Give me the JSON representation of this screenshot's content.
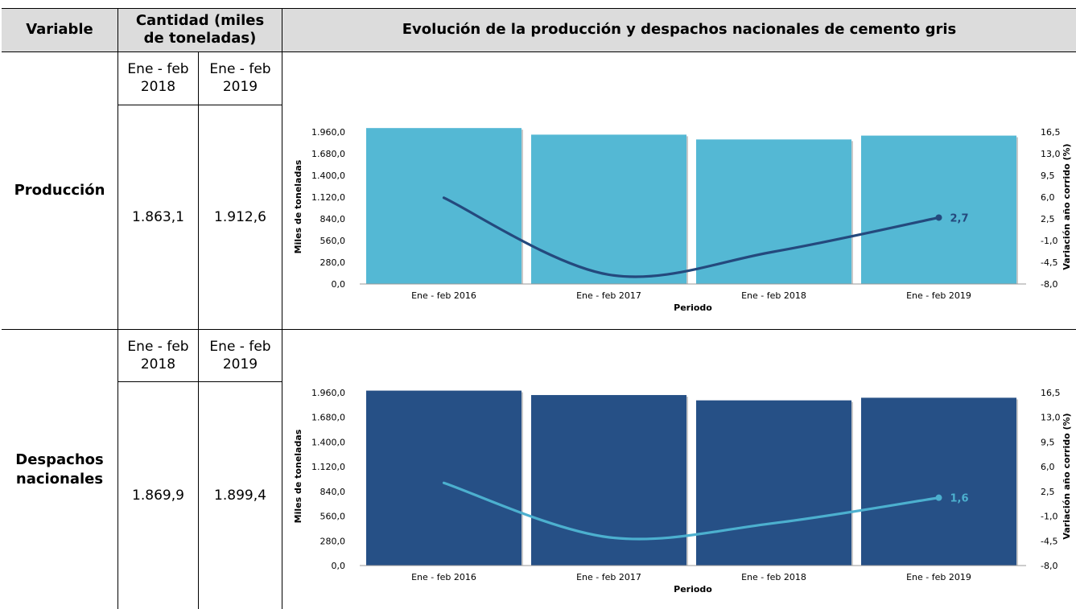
{
  "table": {
    "headers": {
      "variable": "Variable",
      "cantidad": "Cantidad (miles de toneladas)",
      "chart_title": "Evolución de la producción y despachos nacionales de cemento gris"
    },
    "rows": [
      {
        "name": "Producción",
        "col1_header": "Ene - feb 2018",
        "col2_header": "Ene - feb 2019",
        "col1_value": "1.863,1",
        "col2_value": "1.912,6"
      },
      {
        "name": "Despachos nacionales",
        "col1_header": "Ene - feb 2018",
        "col2_header": "Ene - feb 2019",
        "col1_value": "1.869,9",
        "col2_value": "1.899,4"
      }
    ]
  },
  "colors": {
    "header_bg": "#dcdcdc",
    "prod_bar": "#54b8d4",
    "prod_line": "#24497d",
    "desp_bar": "#265086",
    "desp_line": "#4cb0cf"
  },
  "chart_data": [
    {
      "type": "bar",
      "categories": [
        "Ene - feb  2016",
        "Ene - feb  2017",
        "Ene - feb  2018",
        "Ene - feb  2019"
      ],
      "series": [
        {
          "axis": "left",
          "type": "bar",
          "values": [
            2010,
            1925,
            1863.1,
            1912.6
          ]
        },
        {
          "axis": "right",
          "type": "line",
          "values": [
            5.9,
            -6.5,
            -2.8,
            2.7
          ]
        }
      ],
      "xlabel": "Periodo",
      "ylabel": "Miles de toneladas",
      "y2label": "Variación año corrido (%)",
      "ylim": [
        0,
        2240
      ],
      "y2lim": [
        -8.0,
        16.5
      ],
      "yticks": [
        "0,0",
        "280,0",
        "560,0",
        "840,0",
        "1.120,0",
        "1.400,0",
        "1.680,0",
        "1.960,0"
      ],
      "y2ticks": [
        "-8,0",
        "-4,5",
        "-1,0",
        "2,5",
        "6,0",
        "9,5",
        "13,0",
        "16,5"
      ],
      "last_label": "2,7"
    },
    {
      "type": "bar",
      "categories": [
        "Ene - feb  2016",
        "Ene - feb  2017",
        "Ene - feb  2018",
        "Ene - feb  2019"
      ],
      "series": [
        {
          "axis": "left",
          "type": "bar",
          "values": [
            1980,
            1930,
            1869.9,
            1899.4
          ]
        },
        {
          "axis": "right",
          "type": "line",
          "values": [
            3.7,
            -4.0,
            -2.0,
            1.6
          ]
        }
      ],
      "xlabel": "Periodo",
      "ylabel": "Miles de toneladas",
      "y2label": "Variación año corrido (%)",
      "ylim": [
        0,
        2240
      ],
      "y2lim": [
        -8.0,
        16.5
      ],
      "yticks": [
        "0,0",
        "280,0",
        "560,0",
        "840,0",
        "1.120,0",
        "1.400,0",
        "1.680,0",
        "1.960,0"
      ],
      "y2ticks": [
        "-8,0",
        "-4,5",
        "-1,0",
        "2,5",
        "6,0",
        "9,5",
        "13,0",
        "16,5"
      ],
      "last_label": "1,6"
    }
  ]
}
